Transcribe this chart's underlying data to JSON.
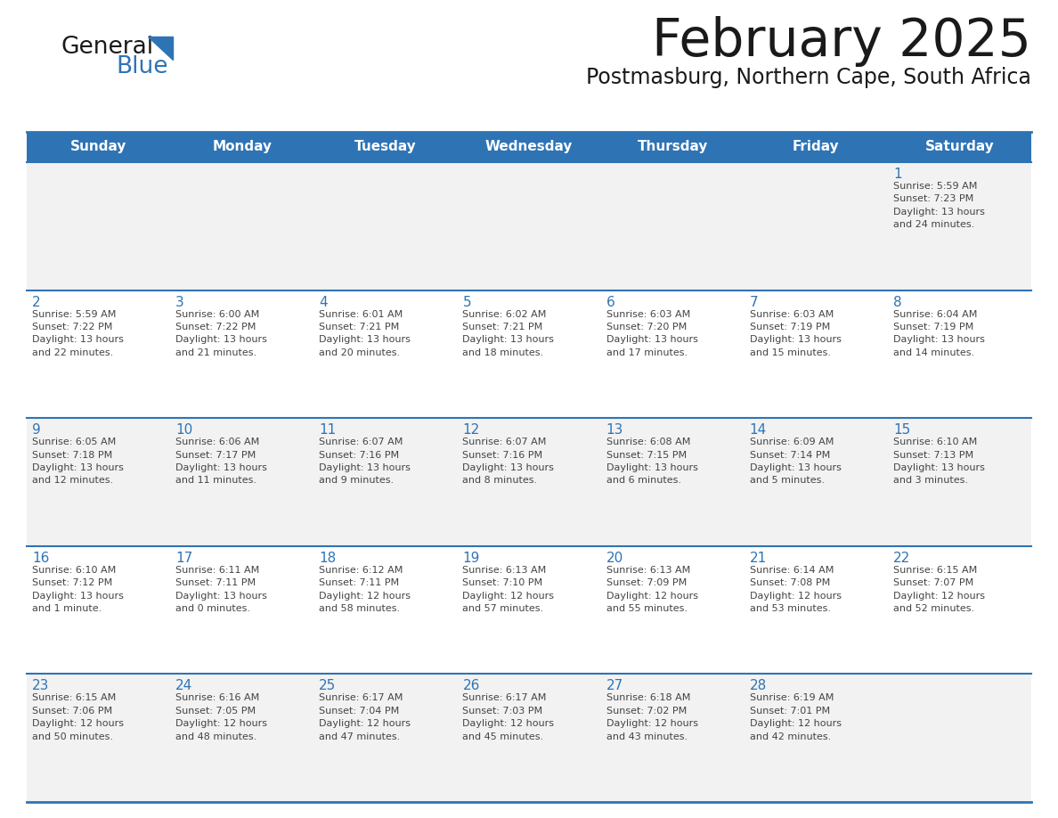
{
  "title": "February 2025",
  "subtitle": "Postmasburg, Northern Cape, South Africa",
  "header_bg": "#2e74b5",
  "header_text_color": "#ffffff",
  "day_names": [
    "Sunday",
    "Monday",
    "Tuesday",
    "Wednesday",
    "Thursday",
    "Friday",
    "Saturday"
  ],
  "cell_bg_light": "#f2f2f2",
  "cell_bg_white": "#ffffff",
  "divider_color": "#2e74b5",
  "text_color": "#222222",
  "day_num_color": "#2e74b5",
  "info_text_color": "#444444",
  "calendar": [
    [
      {
        "day": null,
        "info": null
      },
      {
        "day": null,
        "info": null
      },
      {
        "day": null,
        "info": null
      },
      {
        "day": null,
        "info": null
      },
      {
        "day": null,
        "info": null
      },
      {
        "day": null,
        "info": null
      },
      {
        "day": 1,
        "info": "Sunrise: 5:59 AM\nSunset: 7:23 PM\nDaylight: 13 hours\nand 24 minutes."
      }
    ],
    [
      {
        "day": 2,
        "info": "Sunrise: 5:59 AM\nSunset: 7:22 PM\nDaylight: 13 hours\nand 22 minutes."
      },
      {
        "day": 3,
        "info": "Sunrise: 6:00 AM\nSunset: 7:22 PM\nDaylight: 13 hours\nand 21 minutes."
      },
      {
        "day": 4,
        "info": "Sunrise: 6:01 AM\nSunset: 7:21 PM\nDaylight: 13 hours\nand 20 minutes."
      },
      {
        "day": 5,
        "info": "Sunrise: 6:02 AM\nSunset: 7:21 PM\nDaylight: 13 hours\nand 18 minutes."
      },
      {
        "day": 6,
        "info": "Sunrise: 6:03 AM\nSunset: 7:20 PM\nDaylight: 13 hours\nand 17 minutes."
      },
      {
        "day": 7,
        "info": "Sunrise: 6:03 AM\nSunset: 7:19 PM\nDaylight: 13 hours\nand 15 minutes."
      },
      {
        "day": 8,
        "info": "Sunrise: 6:04 AM\nSunset: 7:19 PM\nDaylight: 13 hours\nand 14 minutes."
      }
    ],
    [
      {
        "day": 9,
        "info": "Sunrise: 6:05 AM\nSunset: 7:18 PM\nDaylight: 13 hours\nand 12 minutes."
      },
      {
        "day": 10,
        "info": "Sunrise: 6:06 AM\nSunset: 7:17 PM\nDaylight: 13 hours\nand 11 minutes."
      },
      {
        "day": 11,
        "info": "Sunrise: 6:07 AM\nSunset: 7:16 PM\nDaylight: 13 hours\nand 9 minutes."
      },
      {
        "day": 12,
        "info": "Sunrise: 6:07 AM\nSunset: 7:16 PM\nDaylight: 13 hours\nand 8 minutes."
      },
      {
        "day": 13,
        "info": "Sunrise: 6:08 AM\nSunset: 7:15 PM\nDaylight: 13 hours\nand 6 minutes."
      },
      {
        "day": 14,
        "info": "Sunrise: 6:09 AM\nSunset: 7:14 PM\nDaylight: 13 hours\nand 5 minutes."
      },
      {
        "day": 15,
        "info": "Sunrise: 6:10 AM\nSunset: 7:13 PM\nDaylight: 13 hours\nand 3 minutes."
      }
    ],
    [
      {
        "day": 16,
        "info": "Sunrise: 6:10 AM\nSunset: 7:12 PM\nDaylight: 13 hours\nand 1 minute."
      },
      {
        "day": 17,
        "info": "Sunrise: 6:11 AM\nSunset: 7:11 PM\nDaylight: 13 hours\nand 0 minutes."
      },
      {
        "day": 18,
        "info": "Sunrise: 6:12 AM\nSunset: 7:11 PM\nDaylight: 12 hours\nand 58 minutes."
      },
      {
        "day": 19,
        "info": "Sunrise: 6:13 AM\nSunset: 7:10 PM\nDaylight: 12 hours\nand 57 minutes."
      },
      {
        "day": 20,
        "info": "Sunrise: 6:13 AM\nSunset: 7:09 PM\nDaylight: 12 hours\nand 55 minutes."
      },
      {
        "day": 21,
        "info": "Sunrise: 6:14 AM\nSunset: 7:08 PM\nDaylight: 12 hours\nand 53 minutes."
      },
      {
        "day": 22,
        "info": "Sunrise: 6:15 AM\nSunset: 7:07 PM\nDaylight: 12 hours\nand 52 minutes."
      }
    ],
    [
      {
        "day": 23,
        "info": "Sunrise: 6:15 AM\nSunset: 7:06 PM\nDaylight: 12 hours\nand 50 minutes."
      },
      {
        "day": 24,
        "info": "Sunrise: 6:16 AM\nSunset: 7:05 PM\nDaylight: 12 hours\nand 48 minutes."
      },
      {
        "day": 25,
        "info": "Sunrise: 6:17 AM\nSunset: 7:04 PM\nDaylight: 12 hours\nand 47 minutes."
      },
      {
        "day": 26,
        "info": "Sunrise: 6:17 AM\nSunset: 7:03 PM\nDaylight: 12 hours\nand 45 minutes."
      },
      {
        "day": 27,
        "info": "Sunrise: 6:18 AM\nSunset: 7:02 PM\nDaylight: 12 hours\nand 43 minutes."
      },
      {
        "day": 28,
        "info": "Sunrise: 6:19 AM\nSunset: 7:01 PM\nDaylight: 12 hours\nand 42 minutes."
      },
      {
        "day": null,
        "info": null
      }
    ]
  ]
}
